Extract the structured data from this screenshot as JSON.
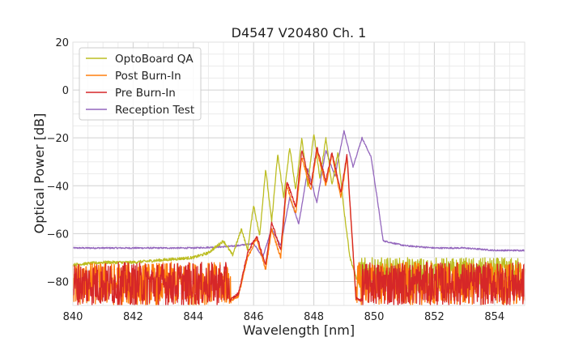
{
  "chart_data": {
    "type": "line",
    "title": "D4547 V20480 Ch. 1",
    "xlabel": "Wavelength [nm]",
    "ylabel": "Optical Power [dB]",
    "xlim": [
      840,
      855
    ],
    "ylim": [
      -90,
      20
    ],
    "xticks": [
      840,
      842,
      844,
      846,
      848,
      850,
      852,
      854
    ],
    "yticks": [
      20,
      0,
      -20,
      -40,
      -60,
      -80
    ],
    "grid": true,
    "legend_position": "top-left",
    "series": [
      {
        "name": "OptoBoard QA",
        "color": "#bcbd22",
        "noise_floor": [
          -84,
          -70
        ],
        "x": [
          840,
          841,
          842,
          843,
          844,
          844.5,
          845,
          845.3,
          845.6,
          845.8,
          846,
          846.2,
          846.4,
          846.6,
          846.8,
          847,
          847.2,
          847.4,
          847.6,
          847.8,
          848,
          848.2,
          848.4,
          848.6,
          848.8,
          849,
          849.2,
          849.4,
          849.6,
          850,
          851,
          852,
          853,
          854,
          855
        ],
        "y": [
          -73,
          -72,
          -72,
          -71,
          -70,
          -68,
          -63,
          -69,
          -58,
          -67,
          -48,
          -61,
          -33,
          -55,
          -27,
          -45,
          -24,
          -42,
          -20,
          -40,
          -18,
          -37,
          -20,
          -40,
          -26,
          -50,
          -70,
          -78,
          -84,
          -84,
          -84,
          -84,
          -84,
          -84,
          -84
        ]
      },
      {
        "name": "Post Burn-In",
        "color": "#ff7f0e",
        "noise_floor": [
          -90,
          -72
        ],
        "x": [
          840,
          844,
          845,
          845.5,
          845.8,
          846.1,
          846.4,
          846.6,
          846.9,
          847.1,
          847.4,
          847.6,
          847.9,
          848.1,
          848.4,
          848.6,
          848.9,
          849.1,
          849.4,
          850,
          855
        ],
        "y": [
          -90,
          -90,
          -90,
          -86,
          -70,
          -62,
          -75,
          -58,
          -70,
          -40,
          -52,
          -28,
          -42,
          -25,
          -40,
          -27,
          -45,
          -28,
          -88,
          -90,
          -90
        ]
      },
      {
        "name": "Pre Burn-In",
        "color": "#d62728",
        "noise_floor": [
          -90,
          -72
        ],
        "x": [
          840,
          844,
          845,
          845.5,
          845.8,
          846.1,
          846.4,
          846.6,
          846.9,
          847.1,
          847.4,
          847.6,
          847.9,
          848.1,
          848.4,
          848.6,
          848.9,
          849.1,
          849.4,
          850,
          855
        ],
        "y": [
          -90,
          -90,
          -90,
          -85,
          -68,
          -61,
          -73,
          -55,
          -67,
          -38,
          -49,
          -25,
          -40,
          -24,
          -38,
          -26,
          -43,
          -27,
          -87,
          -90,
          -90
        ]
      },
      {
        "name": "Reception Test",
        "color": "#9467bd",
        "noise_floor": null,
        "x": [
          840,
          842,
          844,
          845,
          845.5,
          846,
          846.3,
          846.6,
          846.9,
          847.2,
          847.5,
          847.8,
          848.1,
          848.4,
          848.7,
          849,
          849.3,
          849.6,
          849.9,
          850.1,
          850.3,
          851,
          852,
          853,
          854,
          855
        ],
        "y": [
          -66,
          -66,
          -66,
          -65.5,
          -65,
          -64,
          -70,
          -58,
          -65,
          -45,
          -56,
          -33,
          -47,
          -25,
          -36,
          -17,
          -32,
          -20,
          -28,
          -45,
          -63,
          -65,
          -66,
          -66,
          -67,
          -67
        ]
      }
    ]
  }
}
